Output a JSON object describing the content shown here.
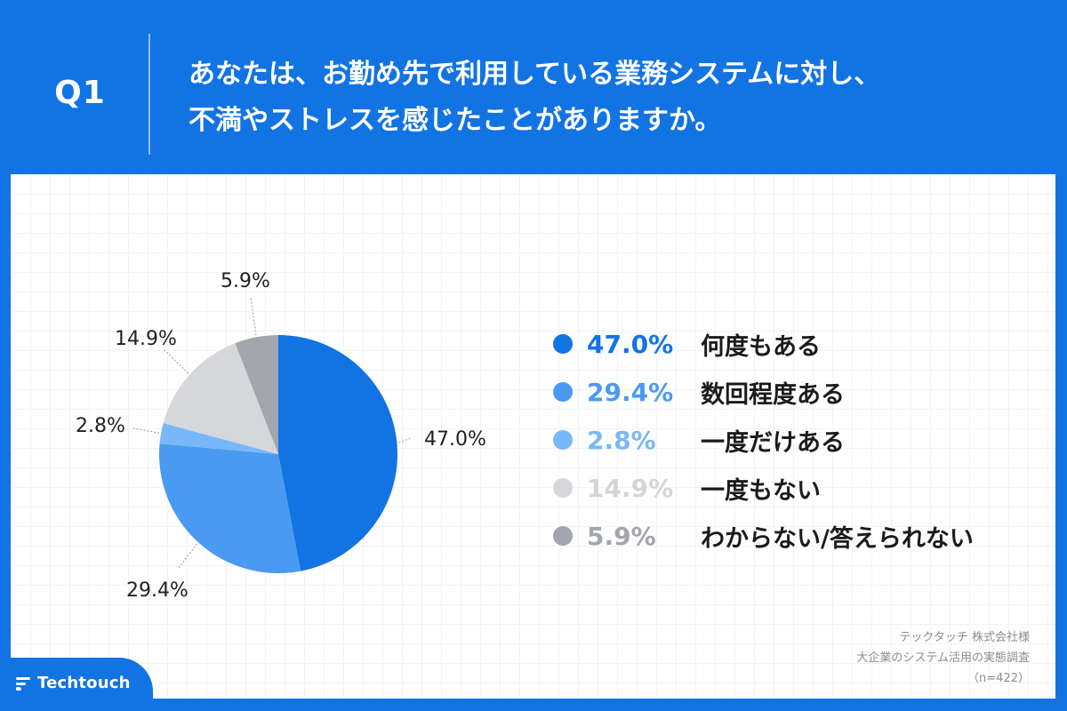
{
  "header": {
    "question_label": "Q1",
    "title_line1": "あなたは、お勤め先で利用している業務システムに対し、",
    "title_line2": "不満やストレスを感じたことがありますか。"
  },
  "chart_data": {
    "type": "pie",
    "slices": [
      {
        "label": "何度もある",
        "value": 47.0,
        "display": "47.0%",
        "color": "#1273e3",
        "legend_text_color": "#1273e3"
      },
      {
        "label": "数回程度ある",
        "value": 29.4,
        "display": "29.4%",
        "color": "#4a9af2",
        "legend_text_color": "#4a9af2"
      },
      {
        "label": "一度だけある",
        "value": 2.8,
        "display": "2.8%",
        "color": "#78b8f8",
        "legend_text_color": "#78b8f8"
      },
      {
        "label": "一度もない",
        "value": 14.9,
        "display": "14.9%",
        "color": "#d6d7da",
        "legend_text_color": "#d4d5d8"
      },
      {
        "label": "わからない/答えられない",
        "value": 5.9,
        "display": "5.9%",
        "color": "#a3a6ad",
        "legend_text_color": "#a3a6ad"
      }
    ],
    "label_text_color": "#222222",
    "leader_color": "#9a9a9a"
  },
  "source": {
    "line1": "テックタッチ 株式会社様",
    "line2": "大企業のシステム活用の実態調査",
    "line3": "（n=422）"
  },
  "brand": {
    "name": "Techtouch"
  }
}
